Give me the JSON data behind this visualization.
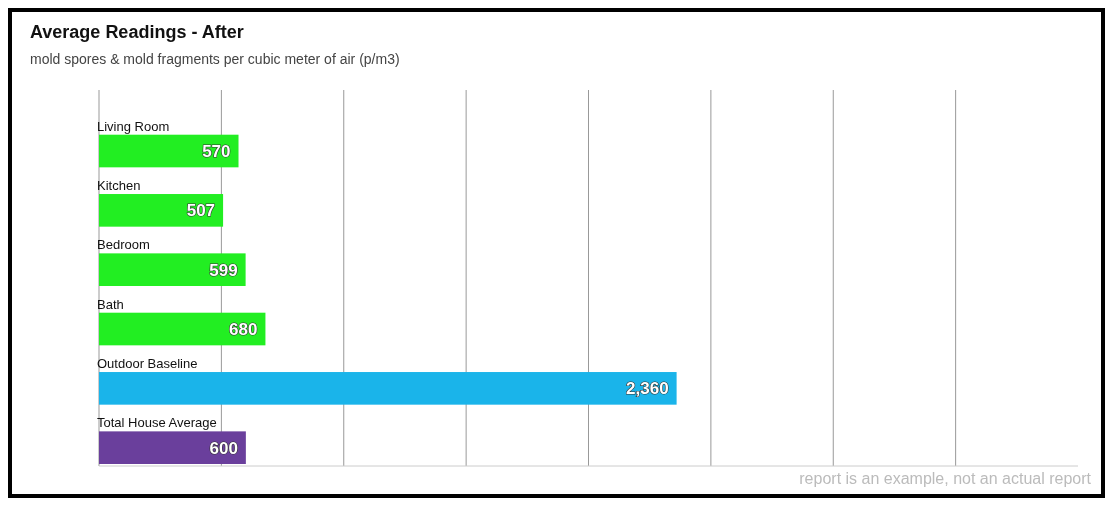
{
  "chart_data": {
    "type": "bar",
    "orientation": "horizontal",
    "title": "Average Readings - After",
    "subtitle": "mold spores & mold fragments per cubic meter of air  (p/m3)",
    "categories": [
      "Living Room",
      "Kitchen",
      "Bedroom",
      "Bath",
      "Outdoor Baseline",
      "Total House Average"
    ],
    "values": [
      570,
      507,
      599,
      680,
      2360,
      600
    ],
    "colors": [
      "#22ee22",
      "#22ee22",
      "#22ee22",
      "#22ee22",
      "#1ab4ea",
      "#6a3f9c"
    ],
    "xlim": [
      0,
      4000
    ],
    "xticks": [
      {
        "value": 0,
        "label": null
      },
      {
        "value": 500,
        "label": null
      },
      {
        "value": 1000,
        "label": null
      },
      {
        "value": 1500,
        "label": null
      },
      {
        "value": 2000,
        "label": null
      },
      {
        "value": 2500,
        "label": null
      },
      {
        "value": 3000,
        "label": null
      },
      {
        "value": 3500,
        "label": null
      }
    ],
    "grid": "x",
    "value_labels": [
      "570",
      "507",
      "599",
      "680",
      "2,360",
      "600"
    ],
    "tick_labels": "y",
    "annotations": [
      "report is an example, not an actual report"
    ]
  }
}
